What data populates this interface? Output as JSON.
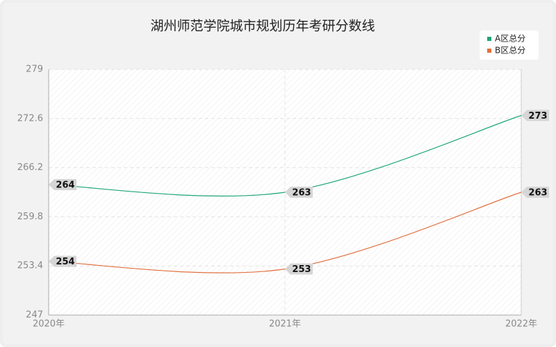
{
  "chart_data": {
    "type": "line",
    "title": "湖州师范学院城市规划历年考研分数线",
    "categories": [
      "2020年",
      "2021年",
      "2022年"
    ],
    "series": [
      {
        "name": "A区总分",
        "color": "#1ea578",
        "values": [
          264,
          263,
          273
        ]
      },
      {
        "name": "B区总分",
        "color": "#e0703f",
        "values": [
          254,
          253,
          263
        ]
      }
    ],
    "ylim": [
      247,
      279
    ],
    "yticks": [
      247,
      253.4,
      259.8,
      266.2,
      272.6,
      279
    ],
    "grid": true,
    "smooth": true,
    "legend": "top-right"
  }
}
